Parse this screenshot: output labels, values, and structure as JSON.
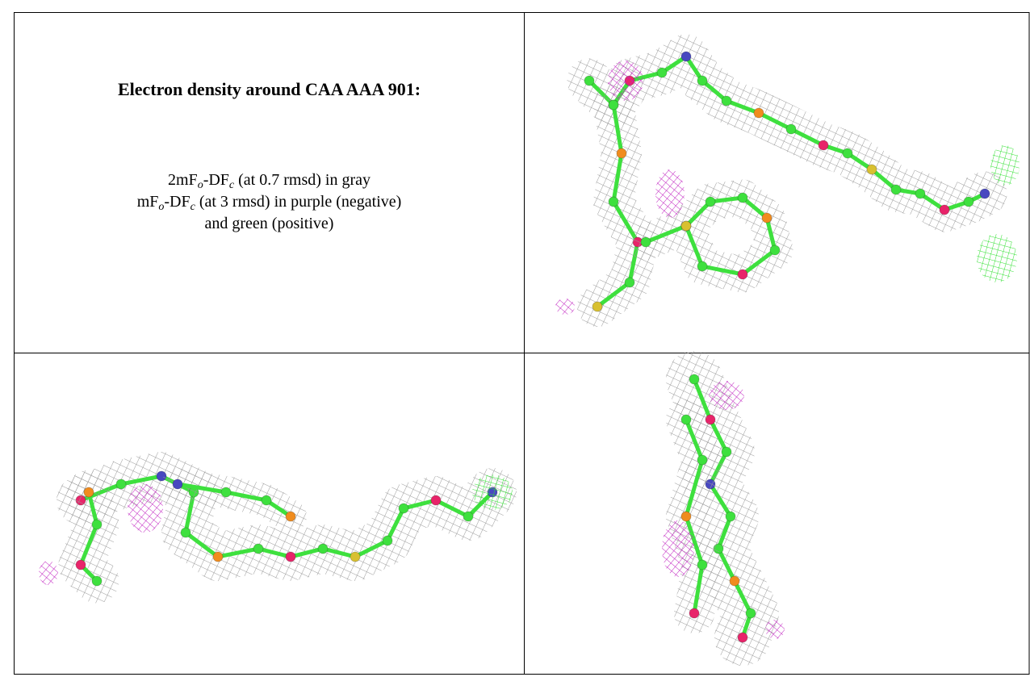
{
  "caption": {
    "title": "Electron density around CAA AAA 901:",
    "lines": [
      [
        {
          "text": "2mF"
        },
        {
          "sub": "o"
        },
        {
          "text": "-DF"
        },
        {
          "sub": "c"
        },
        {
          "text": " (at 0.7 rmsd) in gray"
        }
      ],
      [
        {
          "text": "mF"
        },
        {
          "sub": "o"
        },
        {
          "text": "-DF"
        },
        {
          "sub": "c"
        },
        {
          "text": " (at 3 rmsd) in purple (negative)"
        }
      ],
      [
        {
          "text": "and green (positive)"
        }
      ]
    ]
  }
}
